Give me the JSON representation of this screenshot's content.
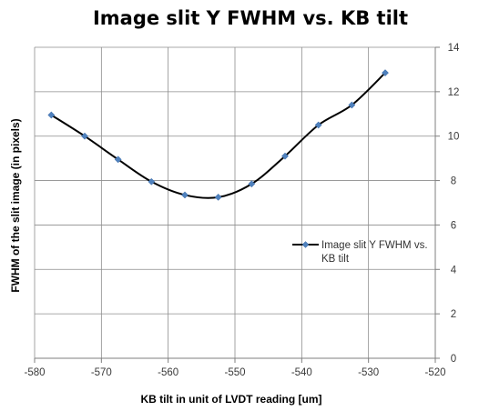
{
  "chart_data": {
    "type": "line",
    "title": "Image slit Y FWHM vs. KB tilt",
    "xlabel": "KB tilt in unit of LVDT reading  [um]",
    "ylabel": "FWHM of the slit image (in pixels)",
    "xlim": [
      -580,
      -520
    ],
    "ylim": [
      0,
      14
    ],
    "x_ticks": [
      "-580",
      "-570",
      "-560",
      "-550",
      "-540",
      "-530",
      "-520"
    ],
    "y_ticks": [
      "0",
      "2",
      "4",
      "6",
      "8",
      "10",
      "12",
      "14"
    ],
    "y_axis_side": "right",
    "grid": true,
    "legend_position": "right",
    "series": [
      {
        "name": "Image slit Y FWHM vs. KB tilt",
        "color": "#4f81bd",
        "line_color": "#000000",
        "marker": "diamond",
        "smooth": true,
        "x": [
          -577.5,
          -572.5,
          -567.5,
          -562.5,
          -557.5,
          -552.5,
          -547.5,
          -542.5,
          -537.5,
          -532.5,
          -527.5
        ],
        "y": [
          10.95,
          10.0,
          8.95,
          7.95,
          7.35,
          7.25,
          7.85,
          9.1,
          10.5,
          11.4,
          12.85
        ]
      }
    ]
  }
}
